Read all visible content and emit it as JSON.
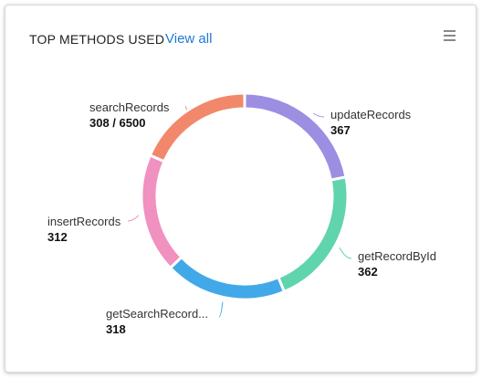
{
  "header": {
    "title": "TOP METHODS USED",
    "link": "View all"
  },
  "chart_data": {
    "type": "pie",
    "donut": true,
    "categories": [
      "updateRecords",
      "getRecordById",
      "getSearchRecord...",
      "insertRecords",
      "searchRecords"
    ],
    "values": [
      367,
      362,
      318,
      312,
      308
    ],
    "value_labels": [
      "367",
      "362",
      "318",
      "312",
      "308 / 6500"
    ],
    "colors": [
      "#9c8fe2",
      "#5fd4ad",
      "#42a9e9",
      "#f091c0",
      "#f2886b"
    ]
  }
}
